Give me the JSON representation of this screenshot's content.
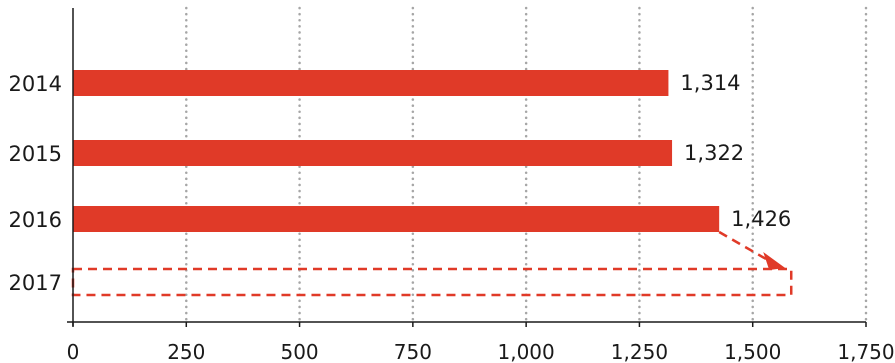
{
  "chart_data": {
    "type": "bar",
    "orientation": "horizontal",
    "categories": [
      "2014",
      "2015",
      "2016",
      "2017"
    ],
    "values": [
      1314,
      1322,
      1426,
      null
    ],
    "value_labels": [
      "1,314",
      "1,322",
      "1,426",
      ""
    ],
    "projected": {
      "category": "2017",
      "value": 1585,
      "style": "dashed-outline",
      "arrow_from_category": "2016"
    },
    "xlim": [
      0,
      1750
    ],
    "x_ticks": [
      0,
      250,
      500,
      750,
      1000,
      1250,
      1500,
      1750
    ],
    "x_tick_labels": [
      "0",
      "250",
      "500",
      "750",
      "1,000",
      "1,250",
      "1,500",
      "1,750"
    ],
    "title": "",
    "xlabel": "",
    "ylabel": "",
    "grid": "vertical-dotted",
    "colors": {
      "bar": "#e03a28",
      "grid": "#a6a6a6",
      "axis": "#1a1a1a",
      "text": "#1a1a1a"
    }
  }
}
